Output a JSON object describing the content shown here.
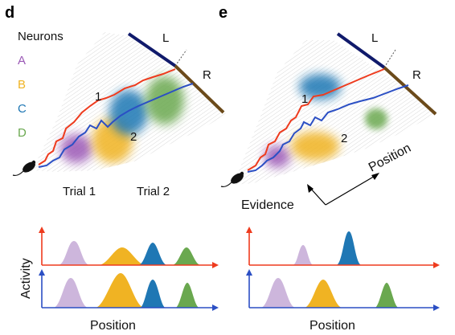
{
  "colors": {
    "neuron_a": "#9b59b6",
    "neuron_b": "#f0b323",
    "neuron_c": "#1f77b4",
    "neuron_d": "#6aa84f",
    "trial1": "#ee3b1e",
    "trial2": "#2b4fc4",
    "left_arm": "#101a6b",
    "right_arm": "#6b4a1a"
  },
  "panel_d": {
    "letter": "d",
    "legend_title": "Neurons",
    "neurons": [
      {
        "key": "a",
        "label": "A"
      },
      {
        "key": "b",
        "label": "B"
      },
      {
        "key": "c",
        "label": "C"
      },
      {
        "key": "d",
        "label": "D"
      }
    ],
    "arm_left": "L",
    "arm_right": "R",
    "trial1_marker": "1",
    "trial2_marker": "2",
    "trial1_label": "Trial 1",
    "trial2_label": "Trial 2"
  },
  "panel_e": {
    "letter": "e",
    "arm_left": "L",
    "arm_right": "R",
    "trial1_marker": "1",
    "trial2_marker": "2",
    "axis_position": "Position",
    "axis_evidence": "Evidence"
  },
  "bottom": {
    "ylabel": "Activity",
    "xlabel_left": "Position",
    "xlabel_right": "Position"
  }
}
